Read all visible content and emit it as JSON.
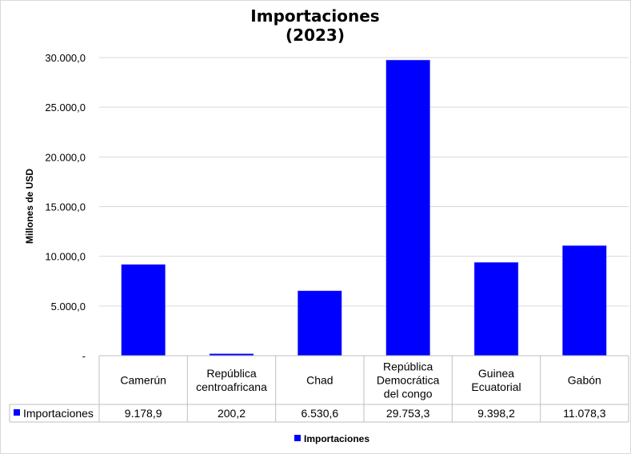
{
  "chart_data": {
    "type": "bar",
    "title": [
      "Importaciones",
      "(2023)"
    ],
    "ylabel": "Millones de USD",
    "xlabel": "",
    "ylim": [
      0,
      30000
    ],
    "yticks": [
      {
        "value": 0,
        "label": "-"
      },
      {
        "value": 5000,
        "label": "5.000,0"
      },
      {
        "value": 10000,
        "label": "10.000,0"
      },
      {
        "value": 15000,
        "label": "15.000,0"
      },
      {
        "value": 20000,
        "label": "20.000,0"
      },
      {
        "value": 25000,
        "label": "25.000,0"
      },
      {
        "value": 30000,
        "label": "30.000,0"
      }
    ],
    "categories": [
      [
        "Camerún"
      ],
      [
        "República",
        "centroafricana"
      ],
      [
        "Chad"
      ],
      [
        "República",
        "Democrática",
        "del congo"
      ],
      [
        "Guinea",
        "Ecuatorial"
      ],
      [
        "Gabón"
      ]
    ],
    "series": [
      {
        "name": "Importaciones",
        "color": "#0000ff",
        "values": [
          9178.9,
          200.2,
          6530.6,
          29753.3,
          9398.2,
          11078.3
        ],
        "labels": [
          "9.178,9",
          "200,2",
          "6.530,6",
          "29.753,3",
          "9.398,2",
          "11.078,3"
        ]
      }
    ],
    "grid": true,
    "legend": {
      "position": "bottom",
      "label": "Importaciones"
    },
    "data_table": true
  }
}
